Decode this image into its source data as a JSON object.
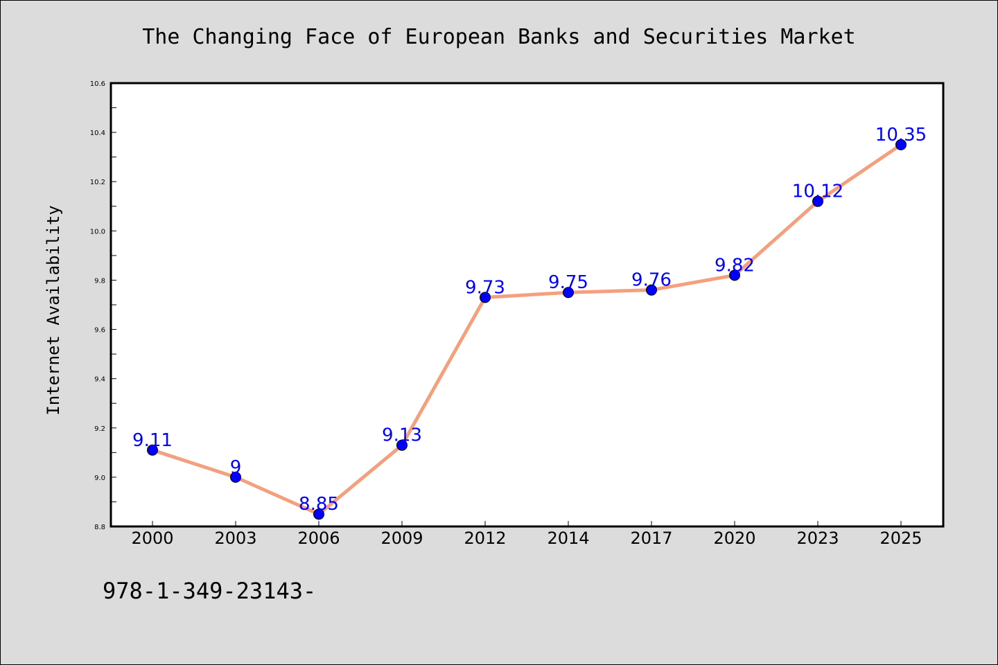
{
  "chart_data": {
    "type": "line",
    "title": "The Changing Face of European Banks and Securities Market",
    "xlabel": "",
    "ylabel": "Internet Availability",
    "categories": [
      "2000",
      "2003",
      "2006",
      "2009",
      "2012",
      "2014",
      "2017",
      "2020",
      "2023",
      "2025"
    ],
    "series": [
      {
        "values": [
          9.11,
          9,
          8.85,
          9.13,
          9.73,
          9.75,
          9.76,
          9.82,
          10.12,
          10.35
        ],
        "labels": [
          "9.11",
          "9",
          "8.85",
          "9.13",
          "9.73",
          "9.75",
          "9.76",
          "9.82",
          "10.12",
          "10.35"
        ]
      }
    ],
    "ylim": [
      8.8,
      10.6
    ],
    "yticks": [
      "8.8",
      "9.0",
      "9.2",
      "9.4",
      "9.6",
      "9.8",
      "10.0",
      "10.2",
      "10.4",
      "10.6"
    ],
    "grid": false,
    "colors": {
      "line": "#f4a07e",
      "marker": "#0000ff",
      "labels": "#0000ff",
      "background": "#dcdcdc",
      "plot_area": "#ffffff"
    }
  },
  "footer": {
    "text": "978-1-349-23143-"
  }
}
